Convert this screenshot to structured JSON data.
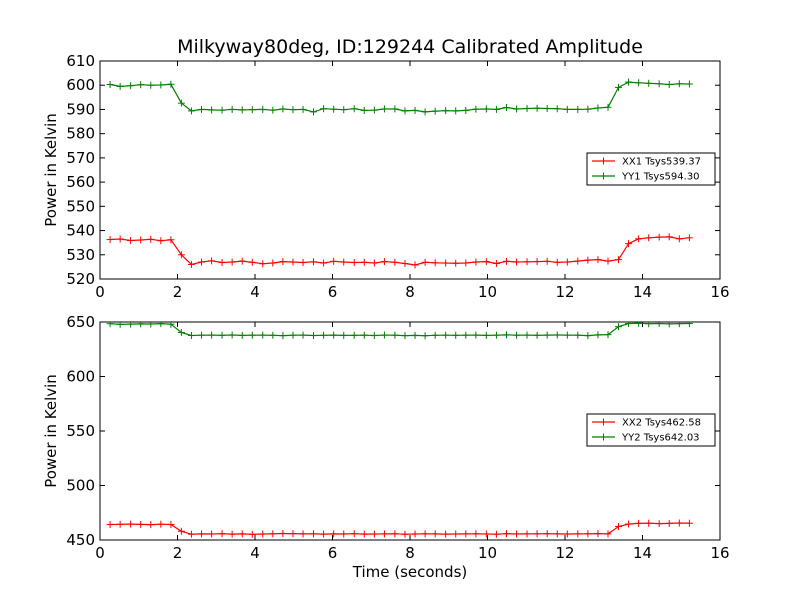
{
  "figure": {
    "title": "Milkyway80deg, ID:129244 Calibrated Amplitude"
  },
  "chart_data": [
    {
      "type": "line",
      "title": "Milkyway80deg, ID:129244 Calibrated Amplitude",
      "xlabel": "",
      "ylabel": "Power in Kelvin",
      "xlim": [
        0,
        16
      ],
      "ylim": [
        520,
        610
      ],
      "xticks": [
        "0",
        "2",
        "4",
        "6",
        "8",
        "10",
        "12",
        "14",
        "16"
      ],
      "yticks": [
        "520",
        "530",
        "540",
        "550",
        "560",
        "570",
        "580",
        "590",
        "600",
        "610"
      ],
      "grid": false,
      "legend_position": "center-right",
      "x": [
        0.26,
        0.52,
        0.79,
        1.05,
        1.31,
        1.57,
        1.83,
        2.1,
        2.36,
        2.62,
        2.88,
        3.15,
        3.41,
        3.67,
        3.93,
        4.2,
        4.46,
        4.72,
        4.98,
        5.24,
        5.51,
        5.77,
        6.03,
        6.29,
        6.56,
        6.82,
        7.08,
        7.34,
        7.61,
        7.87,
        8.13,
        8.39,
        8.65,
        8.92,
        9.18,
        9.44,
        9.7,
        9.97,
        10.23,
        10.49,
        10.75,
        11.02,
        11.28,
        11.54,
        11.8,
        12.06,
        12.33,
        12.59,
        12.85,
        13.11,
        13.38,
        13.64,
        13.9,
        14.16,
        14.43,
        14.69,
        14.95,
        15.21
      ],
      "series": [
        {
          "name": "XX1 Tsys539.37",
          "color": "#ff0000",
          "values": [
            536.3,
            536.5,
            535.9,
            536.1,
            536.4,
            535.8,
            536.2,
            530.0,
            526.0,
            527.0,
            527.5,
            526.8,
            527.0,
            527.4,
            526.9,
            526.3,
            526.6,
            527.2,
            527.0,
            526.8,
            527.1,
            526.6,
            527.3,
            527.0,
            526.8,
            526.9,
            526.6,
            527.2,
            526.9,
            526.4,
            525.8,
            526.9,
            526.7,
            526.6,
            526.5,
            526.6,
            527.0,
            527.2,
            526.4,
            527.3,
            527.0,
            527.1,
            527.2,
            527.3,
            526.9,
            527.0,
            527.4,
            527.8,
            528.0,
            527.4,
            528.0,
            534.6,
            536.6,
            537.0,
            537.3,
            537.4,
            536.6,
            537.0
          ]
        },
        {
          "name": "YY1 Tsys594.30",
          "color": "#008000",
          "values": [
            600.3,
            599.5,
            599.8,
            600.2,
            600.0,
            600.1,
            600.4,
            592.6,
            589.4,
            590.0,
            589.8,
            589.7,
            590.0,
            589.8,
            589.9,
            590.0,
            589.7,
            590.2,
            589.9,
            590.0,
            589.0,
            590.3,
            590.1,
            589.9,
            590.3,
            589.6,
            589.7,
            590.2,
            590.2,
            589.4,
            589.6,
            589.0,
            589.3,
            589.5,
            589.4,
            589.6,
            590.1,
            590.2,
            590.0,
            590.8,
            590.2,
            590.4,
            590.5,
            590.4,
            590.3,
            590.0,
            590.0,
            590.1,
            590.6,
            590.9,
            599.1,
            601.3,
            601.0,
            600.8,
            600.6,
            600.3,
            600.6,
            600.5
          ]
        }
      ]
    },
    {
      "type": "line",
      "title": "",
      "xlabel": "Time (seconds)",
      "ylabel": "Power in Kelvin",
      "xlim": [
        0,
        16
      ],
      "ylim": [
        450,
        650
      ],
      "xticks": [
        "0",
        "2",
        "4",
        "6",
        "8",
        "10",
        "12",
        "14",
        "16"
      ],
      "yticks": [
        "450",
        "500",
        "550",
        "600",
        "650"
      ],
      "grid": false,
      "legend_position": "center-right",
      "x": [
        0.26,
        0.52,
        0.79,
        1.05,
        1.31,
        1.57,
        1.83,
        2.1,
        2.36,
        2.62,
        2.88,
        3.15,
        3.41,
        3.67,
        3.93,
        4.2,
        4.46,
        4.72,
        4.98,
        5.24,
        5.51,
        5.77,
        6.03,
        6.29,
        6.56,
        6.82,
        7.08,
        7.34,
        7.61,
        7.87,
        8.13,
        8.39,
        8.65,
        8.92,
        9.18,
        9.44,
        9.7,
        9.97,
        10.23,
        10.49,
        10.75,
        11.02,
        11.28,
        11.54,
        11.8,
        12.06,
        12.33,
        12.59,
        12.85,
        13.11,
        13.38,
        13.64,
        13.9,
        14.16,
        14.43,
        14.69,
        14.95,
        15.21
      ],
      "series": [
        {
          "name": "XX2 Tsys462.58",
          "color": "#ff0000",
          "values": [
            464.2,
            464.4,
            464.6,
            464.3,
            464.1,
            464.5,
            464.2,
            458.0,
            455.3,
            455.6,
            455.5,
            455.8,
            455.4,
            455.6,
            455.2,
            455.5,
            455.7,
            456.0,
            455.8,
            455.6,
            455.7,
            455.4,
            455.6,
            455.5,
            455.8,
            455.4,
            455.5,
            455.6,
            455.7,
            455.3,
            455.5,
            455.7,
            455.6,
            455.4,
            455.5,
            455.6,
            455.7,
            455.5,
            455.3,
            455.8,
            455.5,
            455.6,
            455.7,
            455.8,
            455.6,
            455.5,
            455.6,
            455.7,
            455.9,
            455.6,
            462.4,
            464.6,
            465.3,
            465.4,
            465.0,
            465.2,
            465.6,
            465.4
          ]
        },
        {
          "name": "YY2 Tsys642.03",
          "color": "#008000",
          "values": [
            648.4,
            647.8,
            648.1,
            648.3,
            648.2,
            648.5,
            648.0,
            640.4,
            637.6,
            637.9,
            638.0,
            637.8,
            638.1,
            637.7,
            637.9,
            638.0,
            637.8,
            637.5,
            637.9,
            638.0,
            637.6,
            637.8,
            638.0,
            637.7,
            637.8,
            637.9,
            637.6,
            638.0,
            637.9,
            637.5,
            637.7,
            637.4,
            637.8,
            637.9,
            637.8,
            637.9,
            638.0,
            637.7,
            637.9,
            638.2,
            637.9,
            638.0,
            637.8,
            638.0,
            638.1,
            638.0,
            637.9,
            637.5,
            638.2,
            638.4,
            645.7,
            648.6,
            648.8,
            648.4,
            648.6,
            648.3,
            648.5,
            648.6
          ]
        }
      ]
    }
  ]
}
